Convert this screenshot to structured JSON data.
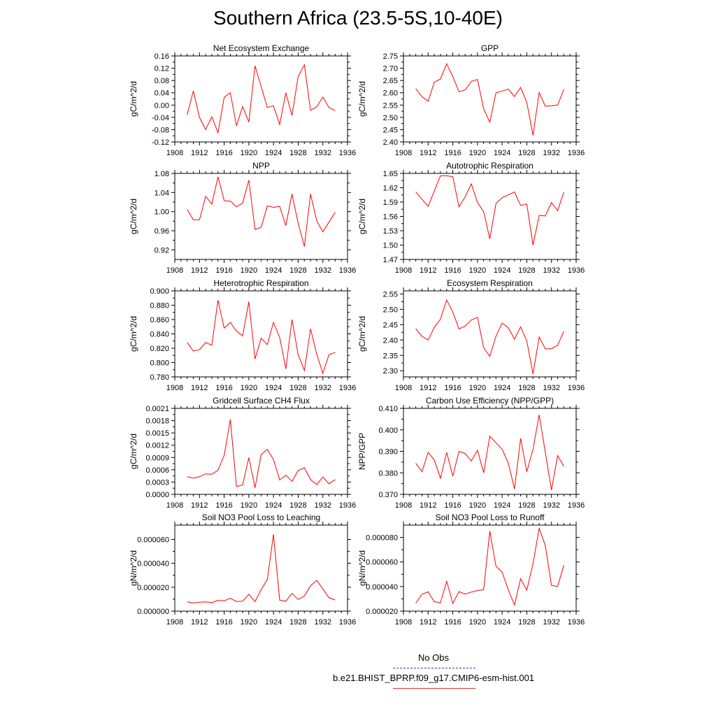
{
  "title": "Southern Africa (23.5-5S,10-40E)",
  "legend": {
    "obs_label": "No Obs",
    "obs_color": "#3a3aaa",
    "model_label": "b.e21.BHIST_BPRP.f09_g17.CMIP6-esm-hist.001",
    "model_color": "#ff0000"
  },
  "chart_data": [
    {
      "type": "line",
      "title": "Net Ecosystem Exchange",
      "ylabel": "gC/m^2/d",
      "xlim": [
        1908,
        1936
      ],
      "ylim": [
        -0.12,
        0.16
      ],
      "yticks": [
        "-0.12",
        "-0.08",
        "-0.04",
        "0.00",
        "0.04",
        "0.08",
        "0.12",
        "0.16"
      ],
      "xticks": [
        "1908",
        "1912",
        "1916",
        "1920",
        "1924",
        "1928",
        "1932",
        "1936"
      ],
      "x": [
        1910,
        1911,
        1912,
        1913,
        1914,
        1915,
        1916,
        1917,
        1918,
        1919,
        1920,
        1921,
        1922,
        1923,
        1924,
        1925,
        1926,
        1927,
        1928,
        1929,
        1930,
        1931,
        1932,
        1933,
        1934
      ],
      "y": [
        -0.032,
        0.046,
        -0.04,
        -0.08,
        -0.038,
        -0.09,
        0.025,
        0.04,
        -0.067,
        -0.005,
        -0.055,
        0.128,
        0.06,
        -0.008,
        -0.002,
        -0.063,
        0.04,
        -0.034,
        0.093,
        0.131,
        -0.017,
        -0.006,
        0.026,
        -0.008,
        -0.018
      ],
      "color": "#ff0000"
    },
    {
      "type": "line",
      "title": "GPP",
      "ylabel": "gC/m^2/d",
      "xlim": [
        1908,
        1936
      ],
      "ylim": [
        2.4,
        2.75
      ],
      "yticks": [
        "2.40",
        "2.45",
        "2.50",
        "2.55",
        "2.60",
        "2.65",
        "2.70",
        "2.75"
      ],
      "xticks": [
        "1908",
        "1912",
        "1916",
        "1920",
        "1924",
        "1928",
        "1932",
        "1936"
      ],
      "x": [
        1910,
        1911,
        1912,
        1913,
        1914,
        1915,
        1916,
        1917,
        1918,
        1919,
        1920,
        1921,
        1922,
        1923,
        1924,
        1925,
        1926,
        1927,
        1928,
        1929,
        1930,
        1931,
        1932,
        1933,
        1934
      ],
      "y": [
        2.617,
        2.584,
        2.566,
        2.643,
        2.656,
        2.718,
        2.666,
        2.604,
        2.612,
        2.646,
        2.654,
        2.535,
        2.48,
        2.6,
        2.607,
        2.615,
        2.585,
        2.622,
        2.561,
        2.427,
        2.601,
        2.545,
        2.547,
        2.55,
        2.614
      ],
      "color": "#ff0000"
    },
    {
      "type": "line",
      "title": "NPP",
      "ylabel": "gC/m^2/d",
      "xlim": [
        1908,
        1936
      ],
      "ylim": [
        0.9,
        1.08
      ],
      "yticks": [
        "0.92",
        "0.96",
        "1.00",
        "1.04",
        "1.08"
      ],
      "xticks": [
        "1908",
        "1912",
        "1916",
        "1920",
        "1924",
        "1928",
        "1932",
        "1936"
      ],
      "x": [
        1910,
        1911,
        1912,
        1913,
        1914,
        1915,
        1916,
        1917,
        1918,
        1919,
        1920,
        1921,
        1922,
        1923,
        1924,
        1925,
        1926,
        1927,
        1928,
        1929,
        1930,
        1931,
        1932,
        1933,
        1934
      ],
      "y": [
        1.005,
        0.983,
        0.983,
        1.032,
        1.016,
        1.073,
        1.023,
        1.022,
        1.01,
        1.018,
        1.066,
        0.963,
        0.967,
        1.012,
        1.009,
        1.011,
        0.971,
        1.037,
        0.976,
        0.927,
        1.037,
        0.981,
        0.958,
        0.978,
        0.999
      ],
      "color": "#ff0000"
    },
    {
      "type": "line",
      "title": "Autotrophic Respiration",
      "ylabel": "gC/m^2/d",
      "xlim": [
        1908,
        1936
      ],
      "ylim": [
        1.47,
        1.65
      ],
      "yticks": [
        "1.47",
        "1.50",
        "1.53",
        "1.56",
        "1.59",
        "1.62",
        "1.65"
      ],
      "xticks": [
        "1908",
        "1912",
        "1916",
        "1920",
        "1924",
        "1928",
        "1932",
        "1936"
      ],
      "x": [
        1910,
        1911,
        1912,
        1913,
        1914,
        1915,
        1916,
        1917,
        1918,
        1919,
        1920,
        1921,
        1922,
        1923,
        1924,
        1925,
        1926,
        1927,
        1928,
        1929,
        1930,
        1931,
        1932,
        1933,
        1934
      ],
      "y": [
        1.611,
        1.596,
        1.581,
        1.613,
        1.645,
        1.645,
        1.643,
        1.58,
        1.601,
        1.628,
        1.589,
        1.57,
        1.513,
        1.587,
        1.599,
        1.605,
        1.611,
        1.583,
        1.586,
        1.5,
        1.562,
        1.561,
        1.589,
        1.572,
        1.611
      ],
      "color": "#ff0000"
    },
    {
      "type": "line",
      "title": "Heterotrophic Respiration",
      "ylabel": "gC/m^2/d",
      "xlim": [
        1908,
        1936
      ],
      "ylim": [
        0.78,
        0.9
      ],
      "yticks": [
        "0.780",
        "0.800",
        "0.820",
        "0.840",
        "0.860",
        "0.880",
        "0.900"
      ],
      "xticks": [
        "1908",
        "1912",
        "1916",
        "1920",
        "1924",
        "1928",
        "1932",
        "1936"
      ],
      "x": [
        1910,
        1911,
        1912,
        1913,
        1914,
        1915,
        1916,
        1917,
        1918,
        1919,
        1920,
        1921,
        1922,
        1923,
        1924,
        1925,
        1926,
        1927,
        1928,
        1929,
        1930,
        1931,
        1932,
        1933,
        1934
      ],
      "y": [
        0.828,
        0.816,
        0.818,
        0.828,
        0.824,
        0.887,
        0.848,
        0.856,
        0.844,
        0.837,
        0.885,
        0.805,
        0.834,
        0.825,
        0.856,
        0.835,
        0.791,
        0.86,
        0.811,
        0.789,
        0.847,
        0.812,
        0.785,
        0.811,
        0.814
      ],
      "color": "#ff0000"
    },
    {
      "type": "line",
      "title": "Ecosystem Respiration",
      "ylabel": "gC/m^2/d",
      "xlim": [
        1908,
        1936
      ],
      "ylim": [
        2.28,
        2.56
      ],
      "yticks": [
        "2.30",
        "2.35",
        "2.40",
        "2.45",
        "2.50",
        "2.55"
      ],
      "xticks": [
        "1908",
        "1912",
        "1916",
        "1920",
        "1924",
        "1928",
        "1932",
        "1936"
      ],
      "x": [
        1910,
        1911,
        1912,
        1913,
        1914,
        1915,
        1916,
        1917,
        1918,
        1919,
        1920,
        1921,
        1922,
        1923,
        1924,
        1925,
        1926,
        1927,
        1928,
        1929,
        1930,
        1931,
        1932,
        1933,
        1934
      ],
      "y": [
        2.437,
        2.412,
        2.4,
        2.441,
        2.468,
        2.53,
        2.491,
        2.436,
        2.445,
        2.465,
        2.474,
        2.375,
        2.347,
        2.412,
        2.455,
        2.44,
        2.403,
        2.443,
        2.397,
        2.289,
        2.41,
        2.371,
        2.372,
        2.383,
        2.428
      ],
      "color": "#ff0000"
    },
    {
      "type": "line",
      "title": "Gridcell Surface CH4 Flux",
      "ylabel": "gC/m^2/d",
      "xlim": [
        1908,
        1936
      ],
      "ylim": [
        0.0,
        0.0021
      ],
      "yticks": [
        "0.0000",
        "0.0003",
        "0.0006",
        "0.0009",
        "0.0012",
        "0.0015",
        "0.0018",
        "0.0021"
      ],
      "xticks": [
        "1908",
        "1912",
        "1916",
        "1920",
        "1924",
        "1928",
        "1932",
        "1936"
      ],
      "x": [
        1910,
        1911,
        1912,
        1913,
        1914,
        1915,
        1916,
        1917,
        1918,
        1919,
        1920,
        1921,
        1922,
        1923,
        1924,
        1925,
        1926,
        1927,
        1928,
        1929,
        1930,
        1931,
        1932,
        1933,
        1934
      ],
      "y": [
        0.00043,
        0.0004,
        0.00043,
        0.0005,
        0.00049,
        0.00059,
        0.00095,
        0.00183,
        0.00019,
        0.00023,
        0.0009,
        0.00016,
        0.00097,
        0.0011,
        0.00085,
        0.00035,
        0.00047,
        0.00032,
        0.00058,
        0.00065,
        0.00036,
        0.00024,
        0.00042,
        0.00026,
        0.00036
      ],
      "color": "#ff0000"
    },
    {
      "type": "line",
      "title": "Carbon Use Efficiency (NPP/GPP)",
      "ylabel": "NPP/GPP",
      "xlim": [
        1908,
        1936
      ],
      "ylim": [
        0.37,
        0.41
      ],
      "yticks": [
        "0.370",
        "0.380",
        "0.390",
        "0.400",
        "0.410"
      ],
      "xticks": [
        "1908",
        "1912",
        "1916",
        "1920",
        "1924",
        "1928",
        "1932",
        "1936"
      ],
      "x": [
        1910,
        1911,
        1912,
        1913,
        1914,
        1915,
        1916,
        1917,
        1918,
        1919,
        1920,
        1921,
        1922,
        1923,
        1924,
        1925,
        1926,
        1927,
        1928,
        1929,
        1930,
        1931,
        1932,
        1933,
        1934
      ],
      "y": [
        0.3845,
        0.3805,
        0.3895,
        0.386,
        0.3775,
        0.3895,
        0.3785,
        0.39,
        0.389,
        0.3855,
        0.3905,
        0.38,
        0.397,
        0.394,
        0.391,
        0.3845,
        0.3725,
        0.396,
        0.3805,
        0.391,
        0.407,
        0.3895,
        0.372,
        0.388,
        0.383
      ],
      "color": "#ff0000"
    },
    {
      "type": "line",
      "title": "Soil NO3 Pool Loss to Leaching",
      "ylabel": "gN/m^2/d",
      "xlim": [
        1908,
        1936
      ],
      "ylim": [
        0.0,
        7.2e-05
      ],
      "yticks": [
        "0.000000",
        "0.000020",
        "0.000040",
        "0.000060"
      ],
      "xticks": [
        "1908",
        "1912",
        "1916",
        "1920",
        "1924",
        "1928",
        "1932",
        "1936"
      ],
      "x": [
        1910,
        1911,
        1912,
        1913,
        1914,
        1915,
        1916,
        1917,
        1918,
        1919,
        1920,
        1921,
        1922,
        1923,
        1924,
        1925,
        1926,
        1927,
        1928,
        1929,
        1930,
        1931,
        1932,
        1933,
        1934
      ],
      "y": [
        7.8e-06,
        6.8e-06,
        7.5e-06,
        7.7e-06,
        7.1e-06,
        9.1e-06,
        8.6e-06,
        1.07e-05,
        8.1e-06,
        8.3e-06,
        1.41e-05,
        7.9e-06,
        1.81e-05,
        2.64e-05,
        6.43e-05,
        9.1e-06,
        8.3e-06,
        1.48e-05,
        9.8e-06,
        1.26e-05,
        2.13e-05,
        2.57e-05,
        1.87e-05,
        1.12e-05,
        9.3e-06
      ],
      "color": "#ff0000"
    },
    {
      "type": "line",
      "title": "Soil NO3 Pool Loss to Runoff",
      "ylabel": "gN/m^2/d",
      "xlim": [
        1908,
        1936
      ],
      "ylim": [
        2e-05,
        9e-05
      ],
      "yticks": [
        "0.000020",
        "0.000040",
        "0.000060",
        "0.000080"
      ],
      "xticks": [
        "1908",
        "1912",
        "1916",
        "1920",
        "1924",
        "1928",
        "1932",
        "1936"
      ],
      "x": [
        1910,
        1911,
        1912,
        1913,
        1914,
        1915,
        1916,
        1917,
        1918,
        1919,
        1920,
        1921,
        1922,
        1923,
        1924,
        1925,
        1926,
        1927,
        1928,
        1929,
        1930,
        1931,
        1932,
        1933,
        1934
      ],
      "y": [
        2.65e-05,
        3.37e-05,
        3.57e-05,
        2.77e-05,
        2.68e-05,
        4.43e-05,
        2.62e-05,
        3.59e-05,
        3.39e-05,
        3.55e-05,
        3.68e-05,
        3.74e-05,
        8.51e-05,
        5.65e-05,
        5.18e-05,
        3.74e-05,
        2.49e-05,
        4.64e-05,
        3.71e-05,
        5.86e-05,
        8.74e-05,
        7.33e-05,
        4.09e-05,
        4.01e-05,
        5.74e-05
      ],
      "color": "#ff0000"
    }
  ]
}
